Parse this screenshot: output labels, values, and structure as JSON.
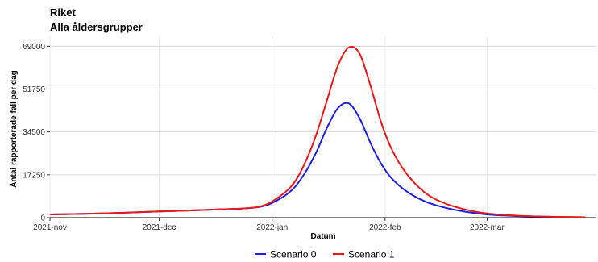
{
  "chart_data": {
    "type": "line",
    "title": "Riket",
    "subtitle": "Alla åldersgrupper",
    "xlabel": "Datum",
    "ylabel": "Antal rapporterade fall per dag",
    "x_axis_type": "date",
    "xlim": [
      "2021-11-01",
      "2022-03-31"
    ],
    "ylim": [
      0,
      73000
    ],
    "x_ticks": [
      {
        "date": "2021-11-01",
        "label": "2021-nov"
      },
      {
        "date": "2021-12-01",
        "label": "2021-dec"
      },
      {
        "date": "2022-01-01",
        "label": "2022-jan"
      },
      {
        "date": "2022-02-01",
        "label": "2022-feb"
      },
      {
        "date": "2022-03-01",
        "label": "2022-mar"
      }
    ],
    "y_ticks": [
      0,
      17250,
      34500,
      51750,
      69000
    ],
    "y_tick_labels": [
      "0",
      "17250",
      "34500",
      "51750",
      "69000"
    ],
    "grid": true,
    "legend_position": "bottom",
    "x": [
      "2021-11-01",
      "2021-11-15",
      "2021-12-01",
      "2021-12-15",
      "2021-12-28",
      "2022-01-03",
      "2022-01-07",
      "2022-01-10",
      "2022-01-13",
      "2022-01-16",
      "2022-01-19",
      "2022-01-22",
      "2022-01-25",
      "2022-01-28",
      "2022-01-31",
      "2022-02-03",
      "2022-02-07",
      "2022-02-12",
      "2022-02-17",
      "2022-02-23",
      "2022-03-01",
      "2022-03-10",
      "2022-03-20",
      "2022-03-28"
    ],
    "series": [
      {
        "name": "Scenario 0",
        "color": "#1f1fdd",
        "values": [
          1300,
          1700,
          2500,
          3200,
          4200,
          7500,
          12000,
          18000,
          26000,
          36000,
          44000,
          46000,
          40000,
          30000,
          21500,
          15500,
          10500,
          6500,
          4200,
          2400,
          1300,
          600,
          300,
          150
        ]
      },
      {
        "name": "Scenario 1",
        "color": "#e41a1c",
        "values": [
          1300,
          1700,
          2500,
          3200,
          4300,
          8500,
          14000,
          22000,
          33000,
          47000,
          61000,
          68500,
          66000,
          53000,
          38000,
          27000,
          17500,
          10000,
          6000,
          3300,
          1700,
          750,
          330,
          160
        ]
      }
    ]
  }
}
